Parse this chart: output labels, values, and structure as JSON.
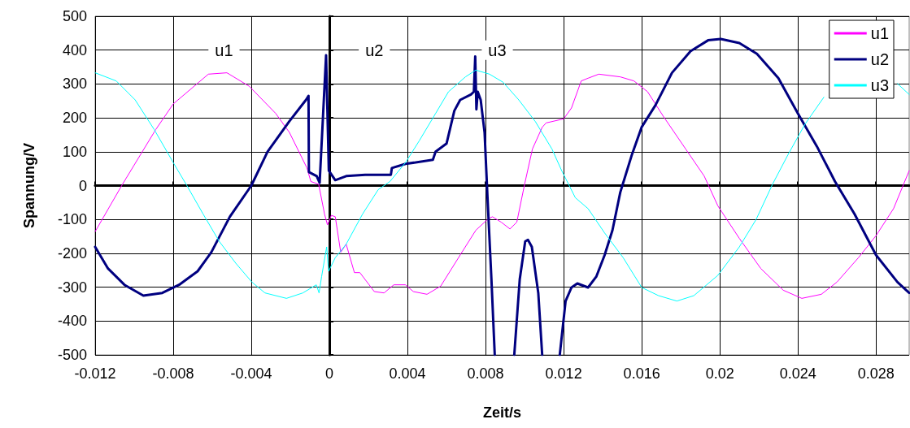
{
  "chart_data": {
    "type": "line",
    "xlabel": "Zeit/s",
    "ylabel": "Spannung/V",
    "xlim": [
      -0.012,
      0.0297
    ],
    "xticks": [
      -0.012,
      -0.008,
      -0.004,
      0,
      0.004,
      0.008,
      0.012,
      0.016,
      0.02,
      0.024,
      0.028
    ],
    "ylim": [
      -500,
      500
    ],
    "yticks": [
      -500,
      -400,
      -300,
      -200,
      -100,
      0,
      100,
      200,
      300,
      400,
      500
    ],
    "grid": true,
    "legend": "top right",
    "marker": "none",
    "line_style": "solid",
    "annotations": [
      {
        "text": "u1",
        "x": -0.0054,
        "y": 400
      },
      {
        "text": "u2",
        "x": 0.0023,
        "y": 400
      },
      {
        "text": "u3",
        "x": 0.0086,
        "y": 400
      }
    ],
    "series": [
      {
        "name": "u1",
        "color": "#ff00ff",
        "x": [
          -0.012,
          -0.01064,
          -0.0089,
          -0.008,
          -0.0062,
          -0.00525,
          -0.0041,
          -0.00275,
          -0.00205,
          -0.00115,
          -0.00095,
          -0.00055,
          -0.00025,
          -0.0001,
          0.0001,
          0.0003,
          0.00058,
          0.00086,
          0.00128,
          0.00156,
          0.0023,
          0.0028,
          0.0033,
          0.0039,
          0.0043,
          0.005,
          0.0057,
          0.0067,
          0.0075,
          0.0081,
          0.00835,
          0.0088,
          0.00925,
          0.0096,
          0.01,
          0.0104,
          0.0109,
          0.0111,
          0.012,
          0.0124,
          0.0129,
          0.01325,
          0.0138,
          0.0149,
          0.0156,
          0.0163,
          0.0171,
          0.01825,
          0.0192,
          0.0199,
          0.021,
          0.0221,
          0.02325,
          0.0242,
          0.0252,
          0.026,
          0.0271,
          0.028,
          0.0289,
          0.0297
        ],
        "values": [
          -136,
          0,
          165,
          241,
          329,
          333,
          293,
          213,
          157,
          52,
          12,
          4,
          -84,
          -116,
          -88,
          -92,
          -197,
          -173,
          -257,
          -257,
          -313,
          -317,
          -293,
          -293,
          -313,
          -321,
          -297,
          -205,
          -132,
          -100,
          -92,
          -108,
          -128,
          -108,
          4,
          108,
          172,
          185,
          197,
          229,
          309,
          317,
          329,
          321,
          309,
          277,
          205,
          108,
          28,
          -60,
          -156,
          -245,
          -309,
          -333,
          -321,
          -285,
          -213,
          -148,
          -68,
          44
        ]
      },
      {
        "name": "u2",
        "color": "#000080",
        "x": [
          -0.012,
          -0.01134,
          -0.0105,
          -0.00953,
          -0.00856,
          -0.0077,
          -0.00675,
          -0.00605,
          -0.0051,
          -0.004,
          -0.00317,
          -0.00206,
          -0.0012,
          -0.00107,
          -0.00105,
          -0.00065,
          -0.0005,
          -0.00017,
          -3e-05,
          0.0003,
          0.00086,
          0.00183,
          0.00315,
          0.0032,
          0.0039,
          0.0053,
          0.00544,
          0.006,
          0.0064,
          0.0067,
          0.00725,
          0.0074,
          0.00747,
          0.00753,
          0.0076,
          0.00775,
          0.00795,
          0.0081,
          0.0083,
          0.00847,
          0.009,
          0.00947,
          0.00975,
          0.01003,
          0.01017,
          0.01037,
          0.0107,
          0.0109,
          0.0113,
          0.0118,
          0.0121,
          0.0124,
          0.0127,
          0.01325,
          0.01367,
          0.0141,
          0.0145,
          0.0149,
          0.0155,
          0.016,
          0.0167,
          0.01755,
          0.0185,
          0.0194,
          0.02005,
          0.021,
          0.0219,
          0.023,
          0.024,
          0.02497,
          0.0259,
          0.0269,
          0.028,
          0.0291,
          0.0297
        ],
        "values": [
          -181,
          -245,
          -293,
          -325,
          -317,
          -293,
          -253,
          -197,
          -92,
          0,
          100,
          189,
          253,
          265,
          40,
          28,
          8,
          385,
          44,
          16,
          28,
          32,
          32,
          52,
          64,
          76,
          100,
          124,
          221,
          253,
          269,
          277,
          381,
          225,
          277,
          253,
          156,
          -36,
          -277,
          -500,
          null,
          -500,
          -277,
          -165,
          -160,
          -181,
          -317,
          -500,
          null,
          -500,
          -341,
          -301,
          -289,
          -301,
          -269,
          -205,
          -132,
          -20,
          92,
          173,
          237,
          333,
          397,
          429,
          433,
          421,
          389,
          317,
          213,
          116,
          12,
          -84,
          -205,
          -285,
          -317
        ]
      },
      {
        "name": "u3",
        "color": "#00ffff",
        "x": [
          -0.012,
          -0.01092,
          -0.00995,
          -0.00897,
          -0.008,
          -0.0073,
          -0.00647,
          -0.00564,
          -0.0048,
          -0.00397,
          -0.0033,
          -0.0022,
          -0.00136,
          -0.00067,
          -0.00053,
          -0.0004,
          -0.00014,
          -4e-05,
          0.0003,
          0.00086,
          0.0017,
          0.0025,
          0.0031,
          0.0039,
          0.0046,
          0.00544,
          0.0061,
          0.00697,
          0.0075,
          0.0082,
          0.0089,
          0.0097,
          0.01055,
          0.0114,
          0.0119,
          0.0126,
          0.01325,
          0.0141,
          0.01505,
          0.016,
          0.01686,
          0.0178,
          0.01867,
          0.0199,
          0.021,
          0.02186,
          0.0227,
          0.0235,
          0.02436,
          0.02533,
          0.027,
          0.0291,
          0.0297
        ],
        "values": [
          333,
          309,
          253,
          165,
          68,
          0,
          -84,
          -165,
          -229,
          -285,
          -317,
          -333,
          -317,
          -293,
          -317,
          -269,
          -181,
          -253,
          -213,
          -173,
          -84,
          -12,
          12,
          68,
          132,
          213,
          277,
          321,
          341,
          329,
          305,
          253,
          189,
          108,
          44,
          -36,
          -68,
          -140,
          -213,
          -301,
          -325,
          -341,
          -325,
          -265,
          -181,
          -100,
          4,
          92,
          181,
          261,
          null,
          301,
          269
        ]
      }
    ]
  }
}
